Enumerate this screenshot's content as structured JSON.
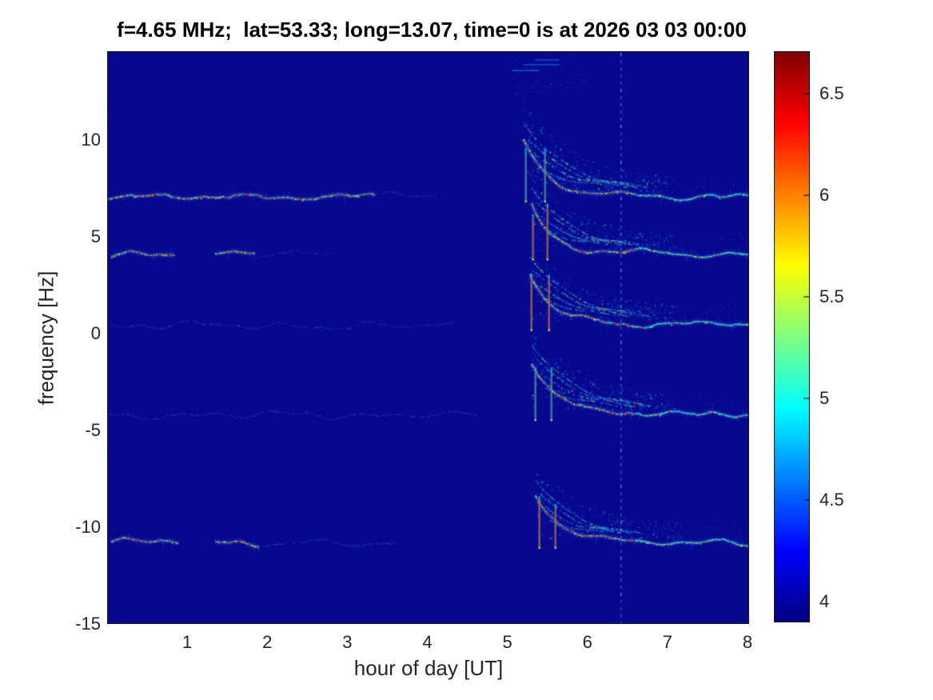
{
  "chart_data": {
    "type": "heatmap",
    "title": "f=4.65 MHz;  lat=53.33; long=13.07, time=0 is at 2026 03 03 00:00",
    "xlabel": "hour of day [UT]",
    "ylabel": "frequency [Hz]",
    "xlim": [
      0,
      8.02
    ],
    "ylim": [
      -15,
      14.6
    ],
    "xticks": [
      1,
      2,
      3,
      4,
      5,
      6,
      7,
      8
    ],
    "yticks": [
      10,
      5,
      0,
      -5,
      -10,
      -15
    ],
    "grid": false,
    "legend": false,
    "background_color": "#08088F",
    "colorbar": {
      "min": 3.9,
      "max": 6.71,
      "ticks": [
        6.5,
        6,
        5.5,
        5,
        4.5,
        4
      ],
      "position": "right"
    },
    "dashed_vline_hour": 6.42,
    "event_onset_hour": 5.25,
    "bands": [
      {
        "freq": 7.1,
        "strong_segments": [
          [
            0.0,
            3.35
          ]
        ],
        "faint_segments": [
          [
            3.35,
            4.1
          ]
        ],
        "chirp": {
          "onset": 5.2,
          "spikes": [
            5.23,
            5.47
          ],
          "spike_height": 2.6,
          "main_amp": 2.9,
          "main_tau": 0.3,
          "branch_amps": [
            3.6,
            2.7,
            1.9,
            1.2
          ],
          "branch_tau": 0.55,
          "cloud_count": 320,
          "cloud_height": 4.2
        },
        "top_speckles": {
          "t0": 5.05,
          "t1": 6.0,
          "f0": 12.4,
          "f1": 14.5,
          "count": 70
        }
      },
      {
        "freq": 4.1,
        "strong_segments": [
          [
            0.05,
            0.85
          ],
          [
            1.35,
            1.85
          ]
        ],
        "faint_segments": [
          [
            1.85,
            2.8
          ]
        ],
        "chirp": {
          "onset": 5.3,
          "spikes": [
            5.32,
            5.5
          ],
          "spike_height": 2.3,
          "main_amp": 2.6,
          "main_tau": 0.28,
          "branch_amps": [
            3.2,
            2.4,
            1.6,
            1.0
          ],
          "branch_tau": 0.5,
          "cloud_count": 260,
          "cloud_height": 3.4
        }
      },
      {
        "freq": 0.45,
        "strong_segments": [],
        "faint_segments": [
          [
            0.0,
            4.35
          ]
        ],
        "chirp": {
          "onset": 5.28,
          "spikes": [
            5.3,
            5.52
          ],
          "spike_height": 2.5,
          "main_amp": 2.7,
          "main_tau": 0.3,
          "branch_amps": [
            3.3,
            2.5,
            1.7,
            1.1
          ],
          "branch_tau": 0.55,
          "cloud_count": 280,
          "cloud_height": 3.6
        }
      },
      {
        "freq": -4.2,
        "strong_segments": [],
        "faint_segments": [
          [
            0.0,
            4.6
          ]
        ],
        "chirp": {
          "onset": 5.3,
          "spikes": [
            5.35,
            5.55
          ],
          "spike_height": 2.4,
          "main_amp": 2.8,
          "main_tau": 0.32,
          "branch_amps": [
            3.4,
            2.6,
            1.8,
            1.1
          ],
          "branch_tau": 0.55,
          "cloud_count": 280,
          "cloud_height": 3.8
        }
      },
      {
        "freq": -10.8,
        "strong_segments": [
          [
            0.05,
            0.9
          ],
          [
            1.35,
            1.9
          ]
        ],
        "faint_segments": [
          [
            1.9,
            3.6
          ]
        ],
        "chirp": {
          "onset": 5.35,
          "spikes": [
            5.4,
            5.6
          ],
          "spike_height": 2.2,
          "main_amp": 2.5,
          "main_tau": 0.3,
          "branch_amps": [
            3.0,
            2.2,
            1.5,
            0.9
          ],
          "branch_tau": 0.5,
          "cloud_count": 240,
          "cloud_height": 3.2
        }
      }
    ]
  }
}
